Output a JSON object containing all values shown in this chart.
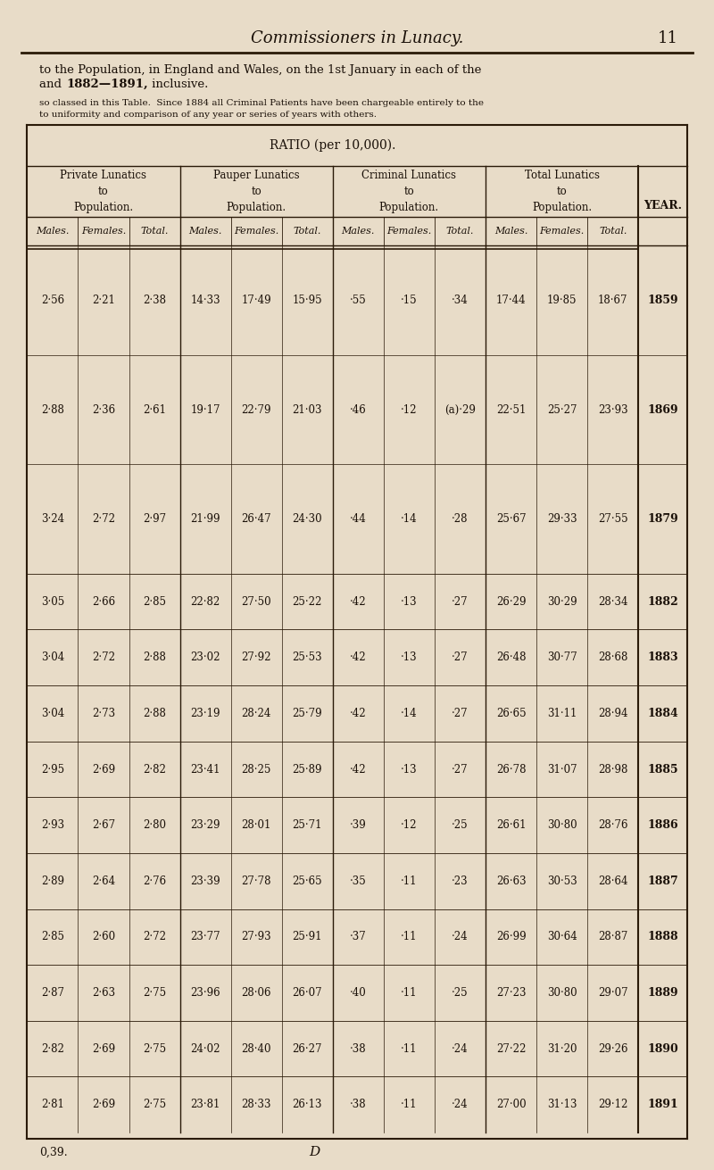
{
  "page_title": "Commissioners in Lunacy.",
  "page_number": "11",
  "intro_text1": "to the Population, in England and Wales, on the 1st January in each of the",
  "intro_text2": "and ",
  "intro_bold": "1882—1891,",
  "intro_text3": " inclusive.",
  "note1": "so classed in this Table.  Since 1884 all Criminal Patients have been chargeable entirely to the",
  "note2": "to uniformity and comparison of any year or series of years with others.",
  "ratio_title": "RATIO (per 10,000).",
  "col_groups": [
    "Private Lunatics\nto\nPopulation.",
    "Pauper Lunatics\nto\nPopulation.",
    "Criminal Lunatics\nto\nPopulation.",
    "Total Lunatics\nto\nPopulation."
  ],
  "sub_cols": [
    "Males.",
    "Females.",
    "Total."
  ],
  "year_col": "YEAR.",
  "rows": [
    {
      "year": "1859",
      "priv": [
        "2·56",
        "2·21",
        "2·38"
      ],
      "paup": [
        "14·33",
        "17·49",
        "15·95"
      ],
      "crim": [
        "·55",
        "·15",
        "·34"
      ],
      "total": [
        "17·44",
        "19·85",
        "18·67"
      ]
    },
    {
      "year": "1869",
      "priv": [
        "2·88",
        "2·36",
        "2·61"
      ],
      "paup": [
        "19·17",
        "22·79",
        "21·03"
      ],
      "crim": [
        "·46",
        "·12",
        "(a)·29"
      ],
      "total": [
        "22·51",
        "25·27",
        "23·93"
      ]
    },
    {
      "year": "1879",
      "priv": [
        "3·24",
        "2·72",
        "2·97"
      ],
      "paup": [
        "21·99",
        "26·47",
        "24·30"
      ],
      "crim": [
        "·44",
        "·14",
        "·28"
      ],
      "total": [
        "25·67",
        "29·33",
        "27·55"
      ]
    },
    {
      "year": "1882",
      "priv": [
        "3·05",
        "2·66",
        "2·85"
      ],
      "paup": [
        "22·82",
        "27·50",
        "25·22"
      ],
      "crim": [
        "·42",
        "·13",
        "·27"
      ],
      "total": [
        "26·29",
        "30·29",
        "28·34"
      ]
    },
    {
      "year": "1883",
      "priv": [
        "3·04",
        "2·72",
        "2·88"
      ],
      "paup": [
        "23·02",
        "27·92",
        "25·53"
      ],
      "crim": [
        "·42",
        "·13",
        "·27"
      ],
      "total": [
        "26·48",
        "30·77",
        "28·68"
      ]
    },
    {
      "year": "1884",
      "priv": [
        "3·04",
        "2·73",
        "2·88"
      ],
      "paup": [
        "23·19",
        "28·24",
        "25·79"
      ],
      "crim": [
        "·42",
        "·14",
        "·27"
      ],
      "total": [
        "26·65",
        "31·11",
        "28·94"
      ]
    },
    {
      "year": "1885",
      "priv": [
        "2·95",
        "2·69",
        "2·82"
      ],
      "paup": [
        "23·41",
        "28·25",
        "25·89"
      ],
      "crim": [
        "·42",
        "·13",
        "·27"
      ],
      "total": [
        "26·78",
        "31·07",
        "28·98"
      ]
    },
    {
      "year": "1886",
      "priv": [
        "2·93",
        "2·67",
        "2·80"
      ],
      "paup": [
        "23·29",
        "28·01",
        "25·71"
      ],
      "crim": [
        "·39",
        "·12",
        "·25"
      ],
      "total": [
        "26·61",
        "30·80",
        "28·76"
      ]
    },
    {
      "year": "1887",
      "priv": [
        "2·89",
        "2·64",
        "2·76"
      ],
      "paup": [
        "23·39",
        "27·78",
        "25·65"
      ],
      "crim": [
        "·35",
        "·11",
        "·23"
      ],
      "total": [
        "26·63",
        "30·53",
        "28·64"
      ]
    },
    {
      "year": "1888",
      "priv": [
        "2·85",
        "2·60",
        "2·72"
      ],
      "paup": [
        "23·77",
        "27·93",
        "25·91"
      ],
      "crim": [
        "·37",
        "·11",
        "·24"
      ],
      "total": [
        "26·99",
        "30·64",
        "28·87"
      ]
    },
    {
      "year": "1889",
      "priv": [
        "2·87",
        "2·63",
        "2·75"
      ],
      "paup": [
        "23·96",
        "28·06",
        "26·07"
      ],
      "crim": [
        "·40",
        "·11",
        "·25"
      ],
      "total": [
        "27·23",
        "30·80",
        "29·07"
      ]
    },
    {
      "year": "1890",
      "priv": [
        "2·82",
        "2·69",
        "2·75"
      ],
      "paup": [
        "24·02",
        "28·40",
        "26·27"
      ],
      "crim": [
        "·38",
        "·11",
        "·24"
      ],
      "total": [
        "27·22",
        "31·20",
        "29·26"
      ]
    },
    {
      "year": "1891",
      "priv": [
        "2·81",
        "2·69",
        "2·75"
      ],
      "paup": [
        "23·81",
        "28·33",
        "26·13"
      ],
      "crim": [
        "·38",
        "·11",
        "·24"
      ],
      "total": [
        "27·00",
        "31·13",
        "29·12"
      ]
    }
  ],
  "footer_left": "0,39.",
  "footer_center": "D",
  "bg_color": "#e8dcc8",
  "text_color": "#1a1008",
  "line_color": "#2a1a08"
}
